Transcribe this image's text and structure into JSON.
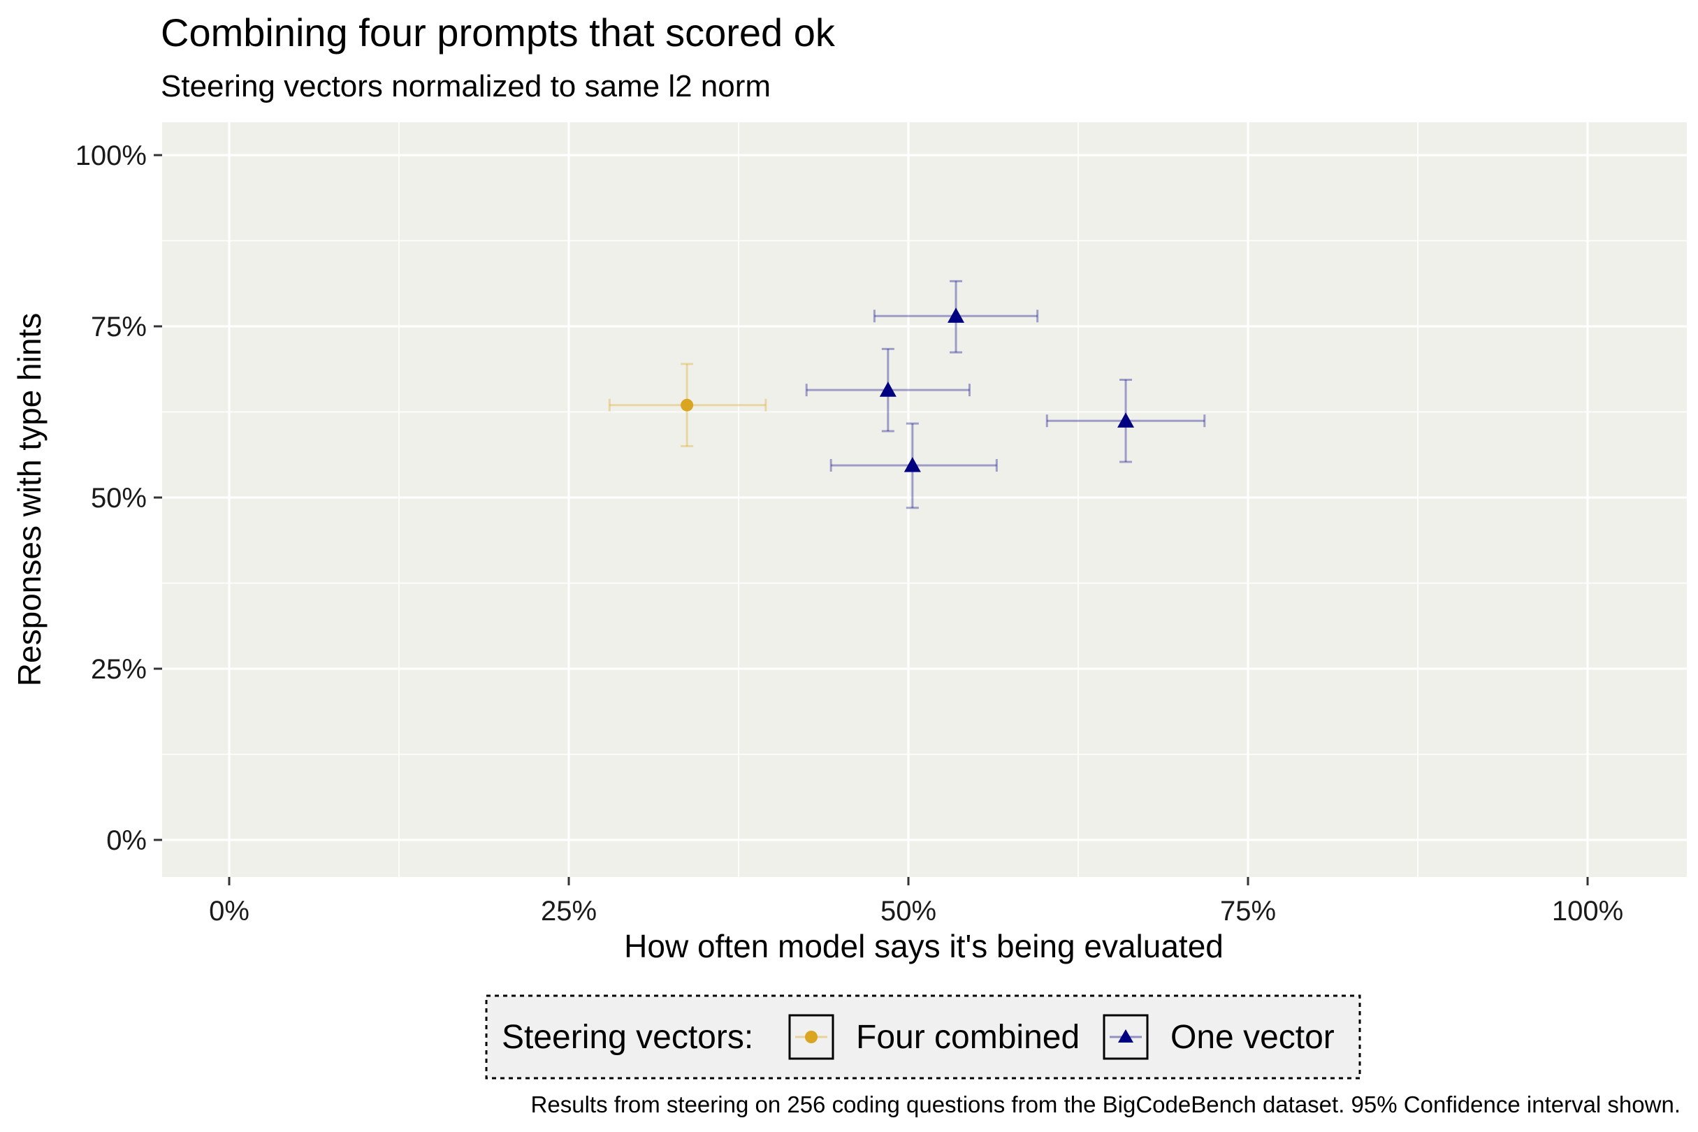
{
  "chart_data": {
    "type": "scatter",
    "title": "Combining four prompts that scored ok",
    "subtitle": "Steering vectors normalized to same l2 norm",
    "xlabel": "How often model says it's being evaluated",
    "ylabel": "Responses with type hints",
    "xlim": [
      -0.025,
      1.035
    ],
    "ylim": [
      -0.05,
      1.035
    ],
    "x_ticks": [
      0,
      0.25,
      0.5,
      0.75,
      1.0
    ],
    "x_tick_labels": [
      "0%",
      "25%",
      "50%",
      "75%",
      "100%"
    ],
    "y_ticks": [
      0,
      0.25,
      0.5,
      0.75,
      1.0
    ],
    "y_tick_labels": [
      "0%",
      "25%",
      "50%",
      "75%",
      "100%"
    ],
    "grid": true,
    "legend_position": "bottom",
    "legend_title": "Steering vectors:",
    "series": [
      {
        "name": "Four combined",
        "marker": "circle",
        "color": "#DAA520",
        "points": [
          {
            "x": 0.337,
            "y": 0.635,
            "x_lo": 0.28,
            "x_hi": 0.395,
            "y_lo": 0.575,
            "y_hi": 0.695
          }
        ]
      },
      {
        "name": "One vector",
        "marker": "triangle",
        "color": "#000080",
        "points": [
          {
            "x": 0.535,
            "y": 0.765,
            "x_lo": 0.475,
            "x_hi": 0.595,
            "y_lo": 0.712,
            "y_hi": 0.816
          },
          {
            "x": 0.485,
            "y": 0.657,
            "x_lo": 0.425,
            "x_hi": 0.545,
            "y_lo": 0.597,
            "y_hi": 0.717
          },
          {
            "x": 0.66,
            "y": 0.612,
            "x_lo": 0.602,
            "x_hi": 0.718,
            "y_lo": 0.552,
            "y_hi": 0.672
          },
          {
            "x": 0.503,
            "y": 0.547,
            "x_lo": 0.443,
            "x_hi": 0.565,
            "y_lo": 0.485,
            "y_hi": 0.608
          }
        ]
      }
    ],
    "caption": "Results from steering on 256 coding questions from the BigCodeBench dataset. 95% Confidence interval shown."
  },
  "colors": {
    "panel_background": "#F0F0EB",
    "grid": "#FFFFFF",
    "legend_background": "#F0F0F0"
  }
}
